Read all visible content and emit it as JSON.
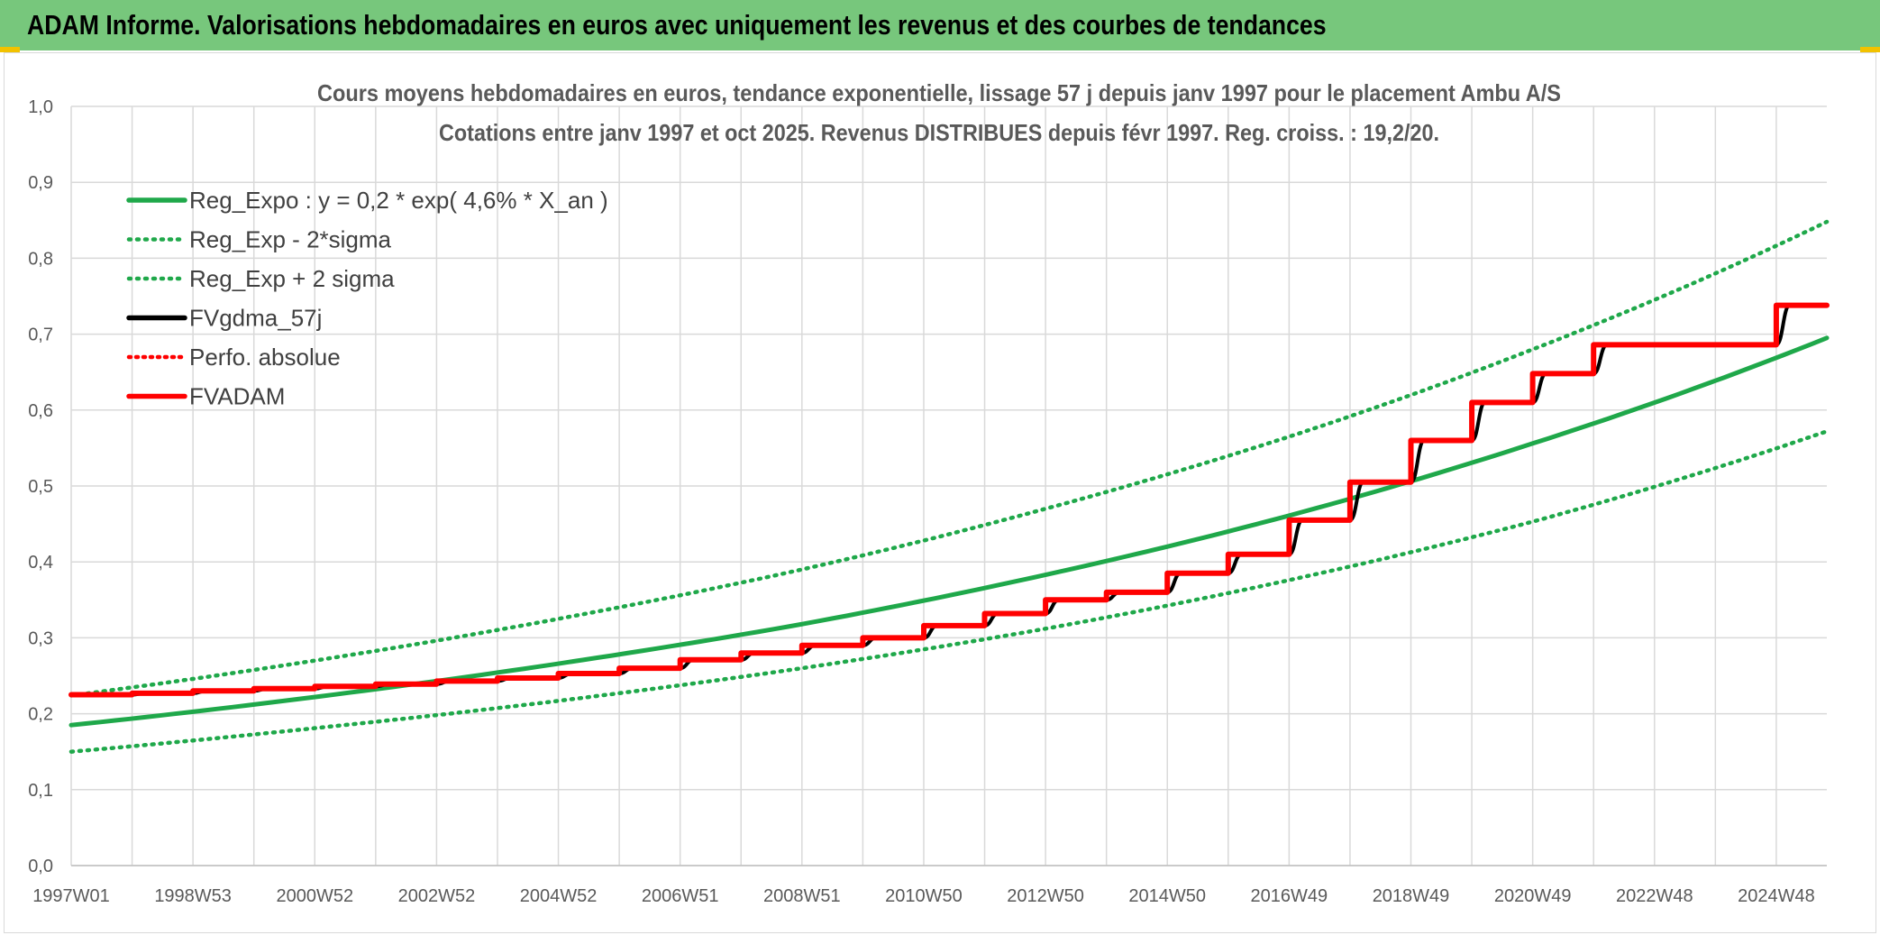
{
  "banner": {
    "title": "ADAM Informe. Valorisations hebdomadaires en euros avec uniquement les revenus et des courbes de tendances"
  },
  "colors": {
    "banner_bg": "#77c77c",
    "corner_accent": "#f2c200",
    "green": "#1fa84a",
    "red": "#ff0000",
    "black": "#000000",
    "grid": "#d9d9d9"
  },
  "chart_data": {
    "type": "line",
    "title": [
      "Cours moyens hebdomadaires en euros, tendance exponentielle, lissage 57 j depuis janv 1997 pour le placement Ambu A/S",
      "Cotations entre janv 1997 et oct 2025. Revenus DISTRIBUES depuis févr 1997. Reg. croiss. : 19,2/20."
    ],
    "xlabel": "",
    "ylabel": "",
    "ylim": [
      0,
      1.0
    ],
    "xlim": [
      1997.0,
      2025.83
    ],
    "grid": true,
    "legend_position": "top-left",
    "y_ticks": [
      "0,0",
      "0,1",
      "0,2",
      "0,3",
      "0,4",
      "0,5",
      "0,6",
      "0,7",
      "0,8",
      "0,9",
      "1,0"
    ],
    "x_ticks": [
      {
        "x": 1997.0,
        "label": "1997W01"
      },
      {
        "x": 1999.0,
        "label": "1998W53"
      },
      {
        "x": 2001.0,
        "label": "2000W52"
      },
      {
        "x": 2003.0,
        "label": "2002W52"
      },
      {
        "x": 2005.0,
        "label": "2004W52"
      },
      {
        "x": 2007.0,
        "label": "2006W51"
      },
      {
        "x": 2009.0,
        "label": "2008W51"
      },
      {
        "x": 2011.0,
        "label": "2010W50"
      },
      {
        "x": 2013.0,
        "label": "2012W50"
      },
      {
        "x": 2015.0,
        "label": "2014W50"
      },
      {
        "x": 2017.0,
        "label": "2016W49"
      },
      {
        "x": 2019.0,
        "label": "2018W49"
      },
      {
        "x": 2021.0,
        "label": "2020W49"
      },
      {
        "x": 2023.0,
        "label": "2022W48"
      },
      {
        "x": 2025.0,
        "label": "2024W48"
      }
    ],
    "series": [
      {
        "name": "Reg_Expo : y = 0,2 * exp( 4,6% *  X_an )",
        "style": "solid-green",
        "x": [
          1997.0,
          2001.0,
          2005.0,
          2009.0,
          2013.0,
          2017.0,
          2021.0,
          2025.83
        ],
        "y": [
          0.185,
          0.222,
          0.266,
          0.318,
          0.383,
          0.461,
          0.556,
          0.695
        ]
      },
      {
        "name": "Reg_Exp - 2*sigma",
        "style": "dotted-green",
        "x": [
          1997.0,
          2001.0,
          2005.0,
          2009.0,
          2013.0,
          2017.0,
          2021.0,
          2025.83
        ],
        "y": [
          0.15,
          0.181,
          0.217,
          0.26,
          0.312,
          0.376,
          0.453,
          0.572
        ]
      },
      {
        "name": "Reg_Exp + 2 sigma",
        "style": "dotted-green",
        "x": [
          1997.0,
          2001.0,
          2005.0,
          2009.0,
          2013.0,
          2017.0,
          2021.0,
          2025.83
        ],
        "y": [
          0.224,
          0.27,
          0.325,
          0.39,
          0.47,
          0.565,
          0.68,
          0.848
        ]
      },
      {
        "name": "FVgdma_57j",
        "style": "solid-black-smooth",
        "steps": [
          {
            "x": 1997.0,
            "y": 0.225
          },
          {
            "x": 1998.0,
            "y": 0.227
          },
          {
            "x": 1999.0,
            "y": 0.23
          },
          {
            "x": 2000.0,
            "y": 0.233
          },
          {
            "x": 2001.0,
            "y": 0.236
          },
          {
            "x": 2002.0,
            "y": 0.239
          },
          {
            "x": 2003.0,
            "y": 0.243
          },
          {
            "x": 2004.0,
            "y": 0.247
          },
          {
            "x": 2005.0,
            "y": 0.253
          },
          {
            "x": 2006.0,
            "y": 0.26
          },
          {
            "x": 2007.0,
            "y": 0.271
          },
          {
            "x": 2008.0,
            "y": 0.28
          },
          {
            "x": 2009.0,
            "y": 0.29
          },
          {
            "x": 2010.0,
            "y": 0.3
          },
          {
            "x": 2011.0,
            "y": 0.316
          },
          {
            "x": 2012.0,
            "y": 0.332
          },
          {
            "x": 2013.0,
            "y": 0.35
          },
          {
            "x": 2014.0,
            "y": 0.36
          },
          {
            "x": 2015.0,
            "y": 0.385
          },
          {
            "x": 2016.0,
            "y": 0.41
          },
          {
            "x": 2017.0,
            "y": 0.455
          },
          {
            "x": 2018.0,
            "y": 0.505
          },
          {
            "x": 2019.0,
            "y": 0.56
          },
          {
            "x": 2020.0,
            "y": 0.61
          },
          {
            "x": 2021.0,
            "y": 0.648
          },
          {
            "x": 2022.0,
            "y": 0.686
          },
          {
            "x": 2025.0,
            "y": 0.738
          }
        ]
      },
      {
        "name": "Perfo. absolue",
        "style": "dotted-red",
        "same_as": "FVADAM"
      },
      {
        "name": "FVADAM",
        "style": "solid-red-steps",
        "steps": [
          {
            "x": 1997.0,
            "y": 0.225
          },
          {
            "x": 1998.0,
            "y": 0.227
          },
          {
            "x": 1999.0,
            "y": 0.23
          },
          {
            "x": 2000.0,
            "y": 0.233
          },
          {
            "x": 2001.0,
            "y": 0.236
          },
          {
            "x": 2002.0,
            "y": 0.239
          },
          {
            "x": 2003.0,
            "y": 0.243
          },
          {
            "x": 2004.0,
            "y": 0.247
          },
          {
            "x": 2005.0,
            "y": 0.253
          },
          {
            "x": 2006.0,
            "y": 0.26
          },
          {
            "x": 2007.0,
            "y": 0.271
          },
          {
            "x": 2008.0,
            "y": 0.28
          },
          {
            "x": 2009.0,
            "y": 0.29
          },
          {
            "x": 2010.0,
            "y": 0.3
          },
          {
            "x": 2011.0,
            "y": 0.316
          },
          {
            "x": 2012.0,
            "y": 0.332
          },
          {
            "x": 2013.0,
            "y": 0.35
          },
          {
            "x": 2014.0,
            "y": 0.36
          },
          {
            "x": 2015.0,
            "y": 0.385
          },
          {
            "x": 2016.0,
            "y": 0.41
          },
          {
            "x": 2017.0,
            "y": 0.455
          },
          {
            "x": 2018.0,
            "y": 0.505
          },
          {
            "x": 2019.0,
            "y": 0.56
          },
          {
            "x": 2020.0,
            "y": 0.61
          },
          {
            "x": 2021.0,
            "y": 0.648
          },
          {
            "x": 2022.0,
            "y": 0.686
          },
          {
            "x": 2025.0,
            "y": 0.738
          }
        ]
      }
    ]
  }
}
